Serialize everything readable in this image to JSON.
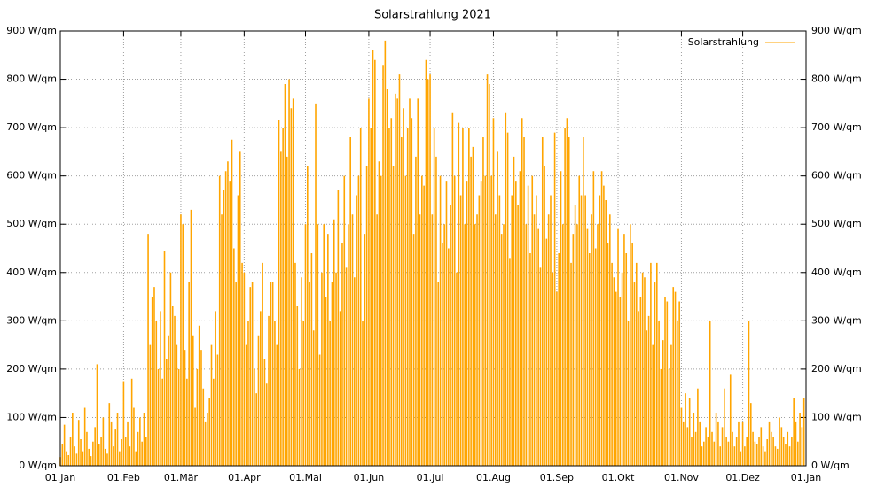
{
  "chart_data": {
    "type": "impulses",
    "title": "Solarstrahlung 2021",
    "xlim": [
      0,
      365
    ],
    "xticks": [
      {
        "value": 0,
        "label": "01.Jan"
      },
      {
        "value": 31,
        "label": "01.Feb"
      },
      {
        "value": 59,
        "label": "01.Mär"
      },
      {
        "value": 90,
        "label": "01.Apr"
      },
      {
        "value": 120,
        "label": "01.Mai"
      },
      {
        "value": 151,
        "label": "01.Jun"
      },
      {
        "value": 181,
        "label": "01.Jul"
      },
      {
        "value": 212,
        "label": "01.Aug"
      },
      {
        "value": 243,
        "label": "01.Sep"
      },
      {
        "value": 273,
        "label": "01.Okt"
      },
      {
        "value": 304,
        "label": "01.Nov"
      },
      {
        "value": 334,
        "label": "01.Dez"
      },
      {
        "value": 365,
        "label": "01.Jan"
      }
    ],
    "ylim": [
      0,
      900
    ],
    "yticks": [
      {
        "value": 0,
        "label": "0 W/qm"
      },
      {
        "value": 100,
        "label": "100 W/qm"
      },
      {
        "value": 200,
        "label": "200 W/qm"
      },
      {
        "value": 300,
        "label": "300 W/qm"
      },
      {
        "value": 400,
        "label": "400 W/qm"
      },
      {
        "value": 500,
        "label": "500 W/qm"
      },
      {
        "value": 600,
        "label": "600 W/qm"
      },
      {
        "value": 700,
        "label": "700 W/qm"
      },
      {
        "value": 800,
        "label": "800 W/qm"
      },
      {
        "value": 900,
        "label": "900 W/qm"
      }
    ],
    "grid": true,
    "legend": "top-right",
    "x": [
      0,
      1,
      2,
      3,
      4,
      5,
      6,
      7,
      8,
      9,
      10,
      11,
      12,
      13,
      14,
      15,
      16,
      17,
      18,
      19,
      20,
      21,
      22,
      23,
      24,
      25,
      26,
      27,
      28,
      29,
      30,
      31,
      32,
      33,
      34,
      35,
      36,
      37,
      38,
      39,
      40,
      41,
      42,
      43,
      44,
      45,
      46,
      47,
      48,
      49,
      50,
      51,
      52,
      53,
      54,
      55,
      56,
      57,
      58,
      59,
      60,
      61,
      62,
      63,
      64,
      65,
      66,
      67,
      68,
      69,
      70,
      71,
      72,
      73,
      74,
      75,
      76,
      77,
      78,
      79,
      80,
      81,
      82,
      83,
      84,
      85,
      86,
      87,
      88,
      89,
      90,
      91,
      92,
      93,
      94,
      95,
      96,
      97,
      98,
      99,
      100,
      101,
      102,
      103,
      104,
      105,
      106,
      107,
      108,
      109,
      110,
      111,
      112,
      113,
      114,
      115,
      116,
      117,
      118,
      119,
      120,
      121,
      122,
      123,
      124,
      125,
      126,
      127,
      128,
      129,
      130,
      131,
      132,
      133,
      134,
      135,
      136,
      137,
      138,
      139,
      140,
      141,
      142,
      143,
      144,
      145,
      146,
      147,
      148,
      149,
      150,
      151,
      152,
      153,
      154,
      155,
      156,
      157,
      158,
      159,
      160,
      161,
      162,
      163,
      164,
      165,
      166,
      167,
      168,
      169,
      170,
      171,
      172,
      173,
      174,
      175,
      176,
      177,
      178,
      179,
      180,
      181,
      182,
      183,
      184,
      185,
      186,
      187,
      188,
      189,
      190,
      191,
      192,
      193,
      194,
      195,
      196,
      197,
      198,
      199,
      200,
      201,
      202,
      203,
      204,
      205,
      206,
      207,
      208,
      209,
      210,
      211,
      212,
      213,
      214,
      215,
      216,
      217,
      218,
      219,
      220,
      221,
      222,
      223,
      224,
      225,
      226,
      227,
      228,
      229,
      230,
      231,
      232,
      233,
      234,
      235,
      236,
      237,
      238,
      239,
      240,
      241,
      242,
      243,
      244,
      245,
      246,
      247,
      248,
      249,
      250,
      251,
      252,
      253,
      254,
      255,
      256,
      257,
      258,
      259,
      260,
      261,
      262,
      263,
      264,
      265,
      266,
      267,
      268,
      269,
      270,
      271,
      272,
      273,
      274,
      275,
      276,
      277,
      278,
      279,
      280,
      281,
      282,
      283,
      284,
      285,
      286,
      287,
      288,
      289,
      290,
      291,
      292,
      293,
      294,
      295,
      296,
      297,
      298,
      299,
      300,
      301,
      302,
      303,
      304,
      305,
      306,
      307,
      308,
      309,
      310,
      311,
      312,
      313,
      314,
      315,
      316,
      317,
      318,
      319,
      320,
      321,
      322,
      323,
      324,
      325,
      326,
      327,
      328,
      329,
      330,
      331,
      332,
      333,
      334,
      335,
      336,
      337,
      338,
      339,
      340,
      341,
      342,
      343,
      344,
      345,
      346,
      347,
      348,
      349,
      350,
      351,
      352,
      353,
      354,
      355,
      356,
      357,
      358,
      359,
      360,
      361,
      362,
      363,
      364
    ],
    "series": [
      {
        "name": "Solarstrahlung",
        "color": "#ffa500",
        "values": [
          18,
          45,
          85,
          30,
          22,
          60,
          110,
          40,
          25,
          95,
          55,
          30,
          120,
          70,
          35,
          20,
          50,
          80,
          210,
          45,
          60,
          100,
          35,
          25,
          130,
          90,
          40,
          75,
          110,
          30,
          55,
          175,
          60,
          90,
          40,
          180,
          120,
          30,
          70,
          100,
          50,
          110,
          60,
          480,
          250,
          350,
          370,
          300,
          200,
          320,
          180,
          445,
          220,
          270,
          400,
          330,
          310,
          250,
          200,
          520,
          500,
          240,
          180,
          380,
          530,
          270,
          120,
          200,
          290,
          240,
          160,
          90,
          110,
          140,
          250,
          180,
          320,
          230,
          600,
          520,
          570,
          610,
          630,
          590,
          675,
          450,
          380,
          560,
          650,
          420,
          400,
          250,
          300,
          370,
          380,
          200,
          150,
          270,
          320,
          420,
          220,
          170,
          310,
          380,
          380,
          300,
          250,
          715,
          650,
          700,
          790,
          640,
          800,
          740,
          760,
          420,
          330,
          200,
          390,
          300,
          500,
          620,
          380,
          440,
          280,
          750,
          500,
          230,
          400,
          500,
          350,
          480,
          300,
          380,
          510,
          400,
          570,
          320,
          460,
          600,
          410,
          500,
          680,
          520,
          390,
          560,
          600,
          700,
          300,
          480,
          620,
          760,
          700,
          860,
          840,
          520,
          630,
          600,
          830,
          880,
          780,
          700,
          720,
          620,
          770,
          760,
          810,
          680,
          740,
          600,
          700,
          760,
          720,
          480,
          640,
          760,
          520,
          600,
          580,
          840,
          800,
          810,
          520,
          700,
          640,
          380,
          600,
          460,
          500,
          590,
          450,
          540,
          730,
          600,
          400,
          710,
          560,
          700,
          500,
          590,
          700,
          640,
          660,
          500,
          520,
          560,
          590,
          680,
          600,
          810,
          790,
          600,
          720,
          520,
          650,
          560,
          480,
          500,
          730,
          690,
          430,
          560,
          640,
          590,
          540,
          610,
          720,
          680,
          500,
          580,
          440,
          600,
          520,
          560,
          490,
          410,
          680,
          620,
          470,
          520,
          560,
          400,
          690,
          360,
          440,
          610,
          500,
          700,
          720,
          680,
          420,
          480,
          540,
          500,
          600,
          560,
          680,
          560,
          490,
          440,
          520,
          610,
          450,
          500,
          560,
          610,
          580,
          550,
          460,
          520,
          420,
          390,
          360,
          490,
          350,
          400,
          480,
          440,
          300,
          500,
          460,
          380,
          420,
          320,
          350,
          400,
          390,
          280,
          310,
          420,
          250,
          380,
          420,
          300,
          200,
          260,
          350,
          340,
          200,
          250,
          370,
          360,
          300,
          340,
          120,
          90,
          150,
          80,
          140,
          60,
          110,
          70,
          160,
          90,
          40,
          50,
          80,
          60,
          300,
          70,
          50,
          110,
          90,
          40,
          80,
          160,
          60,
          50,
          190,
          70,
          40,
          60,
          90,
          30,
          90,
          40,
          60,
          300,
          130,
          70,
          50,
          45,
          60,
          80,
          40,
          30,
          55,
          90,
          70,
          60,
          40,
          35,
          100,
          80,
          60,
          45,
          70,
          40,
          60,
          140,
          90,
          50,
          110,
          80,
          140
        ]
      }
    ]
  }
}
